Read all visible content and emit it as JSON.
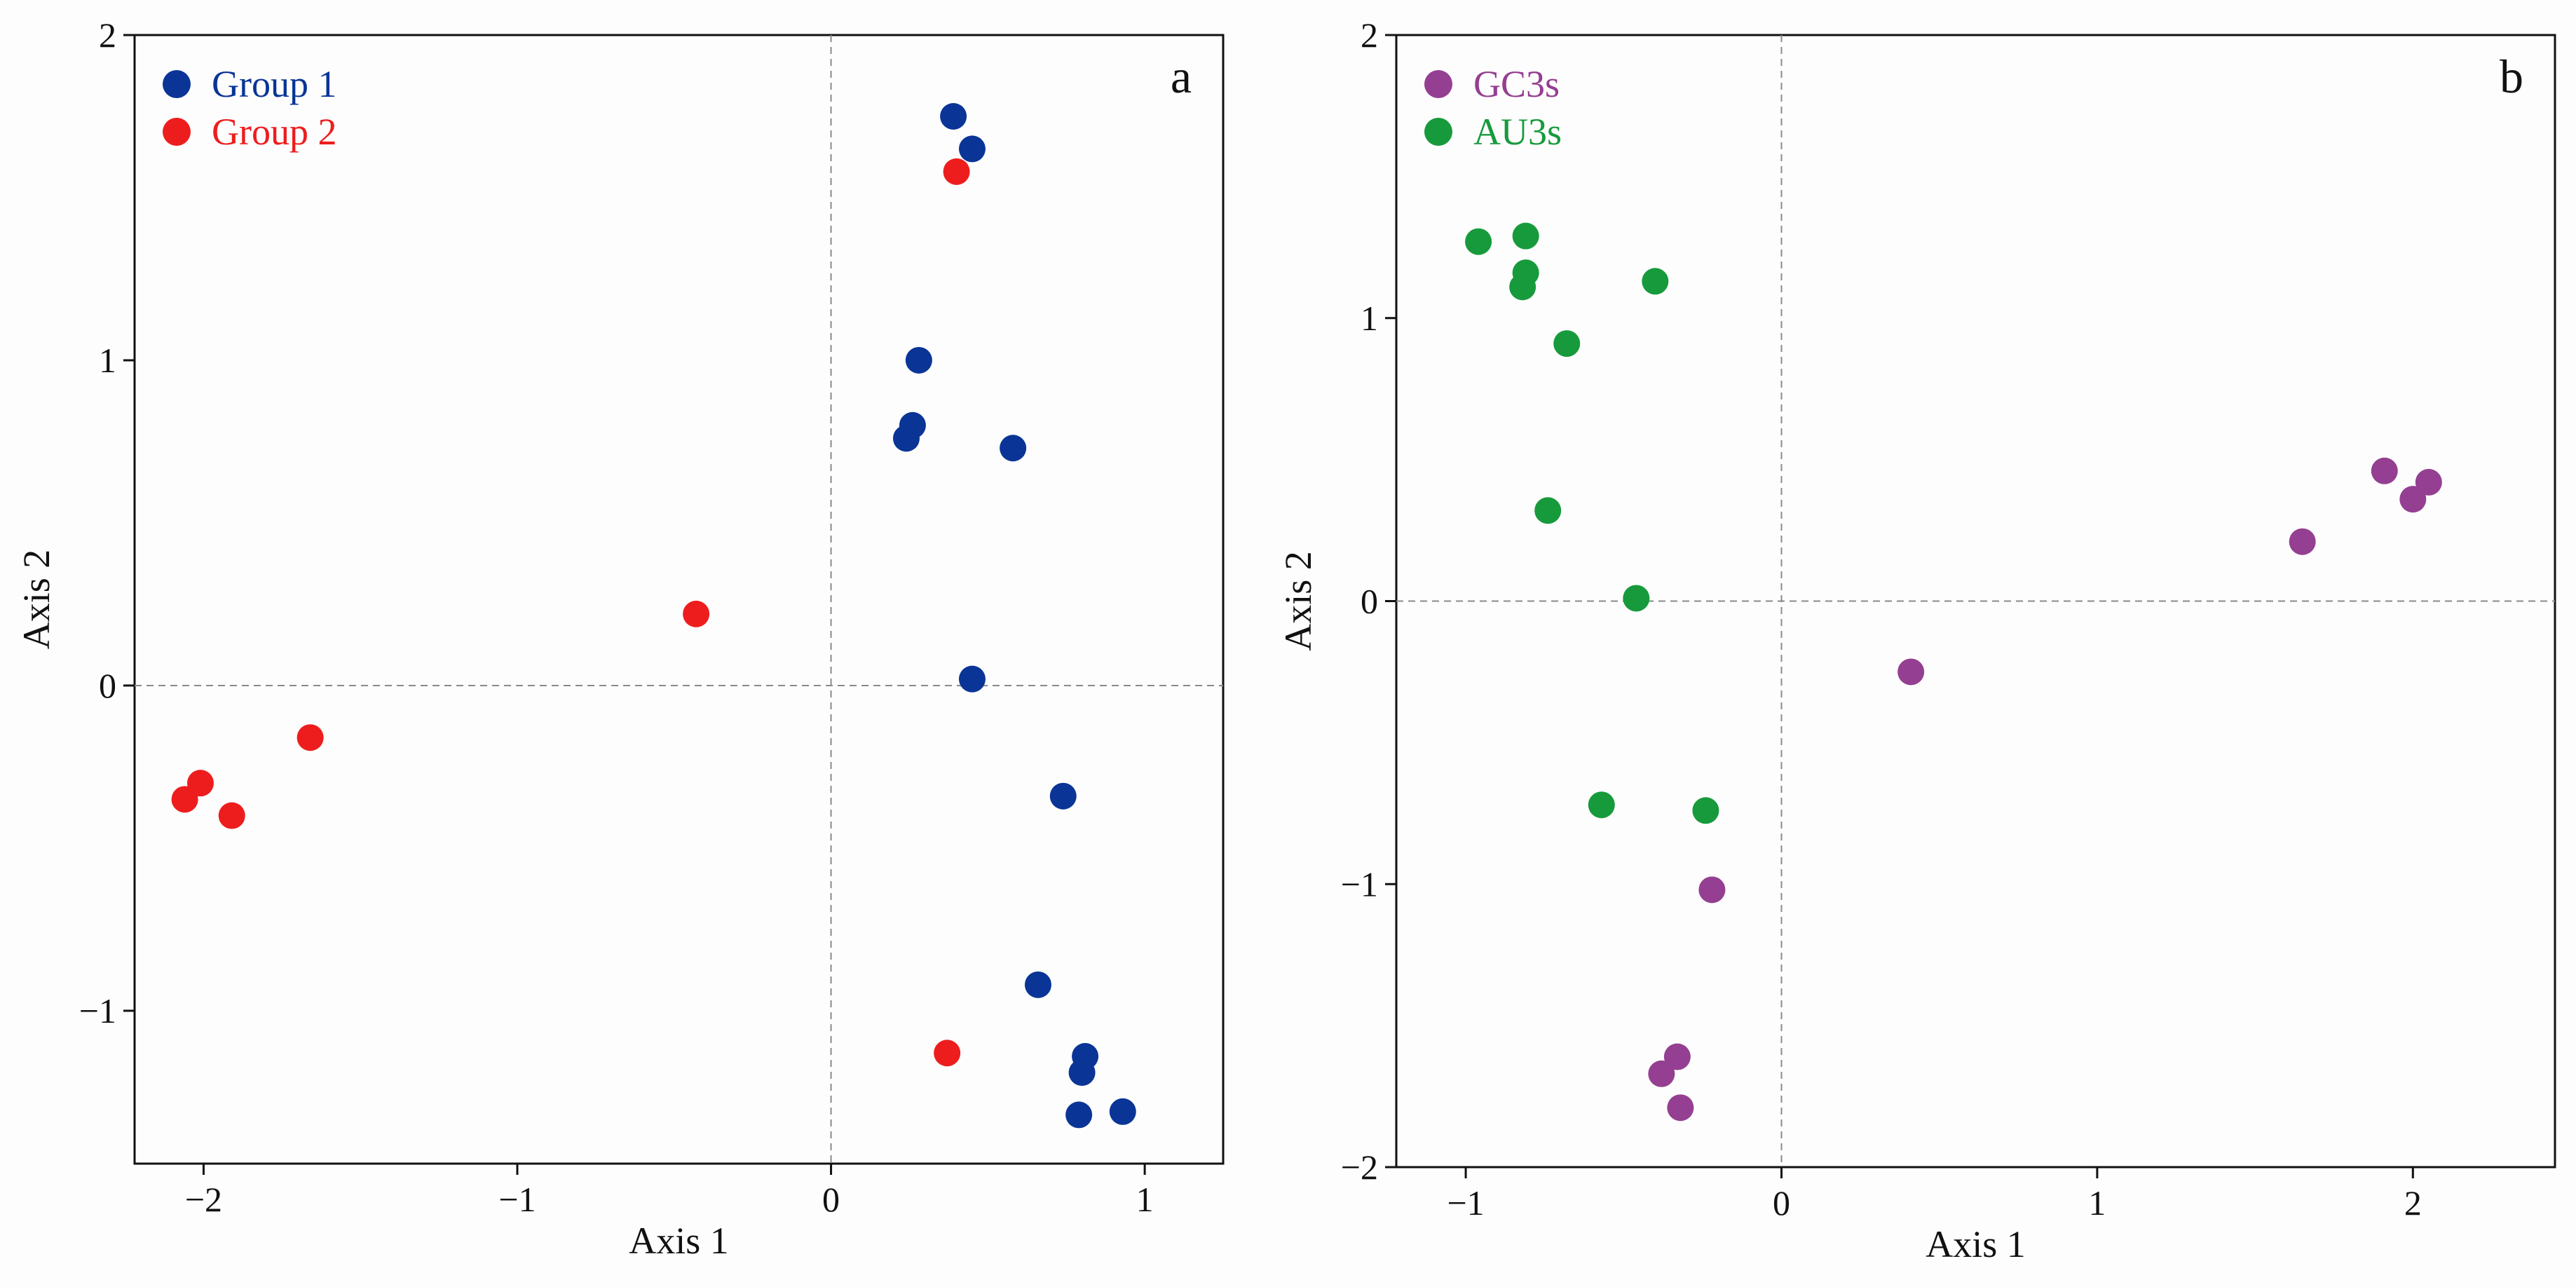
{
  "chart_data": [
    {
      "type": "scatter",
      "panel_label": "a",
      "xlabel": "Axis 1",
      "ylabel": "Axis 2",
      "xlim": [
        -2.22,
        1.25
      ],
      "ylim": [
        -1.47,
        2.0
      ],
      "xticks": [
        -2,
        -1,
        0,
        1
      ],
      "xtick_labels": [
        "−2",
        "−1",
        "0",
        "1"
      ],
      "yticks": [
        -1,
        0,
        1,
        2
      ],
      "ytick_labels": [
        "−1",
        "0",
        "1",
        "2"
      ],
      "reference_lines": {
        "x": 0,
        "y": 0
      },
      "legend_position": "top-left",
      "series": [
        {
          "name": "Group 1",
          "color": "#0a3596",
          "points": [
            [
              0.39,
              1.75
            ],
            [
              0.45,
              1.65
            ],
            [
              0.28,
              1.0
            ],
            [
              0.26,
              0.8
            ],
            [
              0.24,
              0.76
            ],
            [
              0.58,
              0.73
            ],
            [
              0.45,
              0.02
            ],
            [
              0.74,
              -0.34
            ],
            [
              0.66,
              -0.92
            ],
            [
              0.81,
              -1.14
            ],
            [
              0.8,
              -1.19
            ],
            [
              0.93,
              -1.31
            ],
            [
              0.79,
              -1.32
            ]
          ]
        },
        {
          "name": "Group 2",
          "color": "#ee1d1d",
          "points": [
            [
              0.4,
              1.58
            ],
            [
              -0.43,
              0.22
            ],
            [
              -1.66,
              -0.16
            ],
            [
              -2.01,
              -0.3
            ],
            [
              -2.06,
              -0.35
            ],
            [
              -1.91,
              -0.4
            ],
            [
              0.37,
              -1.13
            ]
          ]
        }
      ]
    },
    {
      "type": "scatter",
      "panel_label": "b",
      "xlabel": "Axis 1",
      "ylabel": "Axis 2",
      "xlim": [
        -1.22,
        2.45
      ],
      "ylim": [
        -2.0,
        2.0
      ],
      "xticks": [
        -1,
        0,
        1,
        2
      ],
      "xtick_labels": [
        "−1",
        "0",
        "1",
        "2"
      ],
      "yticks": [
        -2,
        -1,
        0,
        1,
        2
      ],
      "ytick_labels": [
        "−2",
        "−1",
        "0",
        "1",
        "2"
      ],
      "reference_lines": {
        "x": 0,
        "y": 0
      },
      "legend_position": "top-left",
      "series": [
        {
          "name": "GC3s",
          "color": "#943f91",
          "points": [
            [
              1.91,
              0.46
            ],
            [
              2.05,
              0.42
            ],
            [
              2.0,
              0.36
            ],
            [
              1.65,
              0.21
            ],
            [
              0.41,
              -0.25
            ],
            [
              -0.22,
              -1.02
            ],
            [
              -0.33,
              -1.61
            ],
            [
              -0.38,
              -1.67
            ],
            [
              -0.32,
              -1.79
            ]
          ]
        },
        {
          "name": "AU3s",
          "color": "#179a3c",
          "points": [
            [
              -0.96,
              1.27
            ],
            [
              -0.81,
              1.29
            ],
            [
              -0.81,
              1.16
            ],
            [
              -0.82,
              1.11
            ],
            [
              -0.4,
              1.13
            ],
            [
              -0.68,
              0.91
            ],
            [
              -0.74,
              0.32
            ],
            [
              -0.46,
              0.01
            ],
            [
              -0.57,
              -0.72
            ],
            [
              -0.24,
              -0.74
            ]
          ]
        }
      ]
    }
  ]
}
